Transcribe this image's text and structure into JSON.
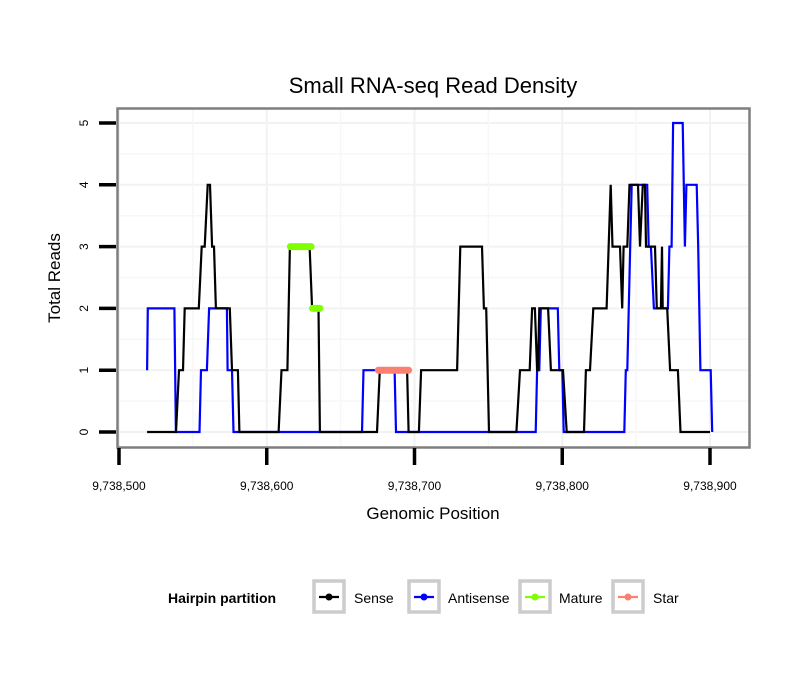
{
  "chart_data": {
    "type": "line",
    "title": "Small RNA-seq Read Density",
    "xlabel": "Genomic Position",
    "ylabel": "Total Reads",
    "xlim": [
      9738480,
      9738928
    ],
    "ylim": [
      -0.25,
      5.25
    ],
    "x_ticks": [
      9738500,
      9738600,
      9738700,
      9738800,
      9738900
    ],
    "x_tick_labels": [
      "9,738,500",
      "9,738,600",
      "9,738,700",
      "9,738,800",
      "9,738,900"
    ],
    "y_ticks": [
      0,
      1,
      2,
      3,
      4,
      5
    ],
    "y_tick_labels": [
      "0",
      "1",
      "2",
      "3",
      "4",
      "5"
    ],
    "grid": true,
    "legend": {
      "title": "Hairpin partition",
      "position": "bottom",
      "entries": [
        {
          "name": "Sense",
          "color": "#000000"
        },
        {
          "name": "Antisense",
          "color": "#0000ff"
        },
        {
          "name": "Mature",
          "color": "#7fff00"
        },
        {
          "name": "Star",
          "color": "#fa8072"
        }
      ]
    },
    "x_offset": 9738500,
    "series": [
      {
        "name": "Sense",
        "color": "#000000",
        "points": [
          [
            19,
            0
          ],
          [
            38.6,
            0
          ],
          [
            40.6,
            1
          ],
          [
            43.3,
            1
          ],
          [
            44.5,
            2
          ],
          [
            54,
            2
          ],
          [
            56,
            3
          ],
          [
            58,
            3
          ],
          [
            60,
            4
          ],
          [
            61.6,
            4
          ],
          [
            63,
            3
          ],
          [
            64.3,
            3
          ],
          [
            65.6,
            2
          ],
          [
            75,
            2
          ],
          [
            76.5,
            1
          ],
          [
            80.5,
            1
          ],
          [
            81.5,
            0
          ],
          [
            108,
            0
          ],
          [
            110,
            1
          ],
          [
            114,
            1
          ],
          [
            115.7,
            3
          ],
          [
            129,
            3
          ],
          [
            130.7,
            2
          ],
          [
            135,
            2
          ],
          [
            136,
            0
          ],
          [
            174.6,
            0
          ],
          [
            176.5,
            1
          ],
          [
            195,
            1
          ],
          [
            196,
            0
          ],
          [
            203,
            0
          ],
          [
            204.5,
            1
          ],
          [
            228.8,
            1
          ],
          [
            231,
            3
          ],
          [
            245.7,
            3
          ],
          [
            247,
            2
          ],
          [
            248.5,
            2
          ],
          [
            250.4,
            0
          ],
          [
            269,
            0
          ],
          [
            271.4,
            1
          ],
          [
            278,
            1
          ],
          [
            279.6,
            2
          ],
          [
            281.5,
            2
          ],
          [
            283,
            1
          ],
          [
            283.5,
            1
          ],
          [
            284.5,
            2
          ],
          [
            290.4,
            2
          ],
          [
            292.3,
            1
          ],
          [
            300.5,
            1
          ],
          [
            303,
            0
          ],
          [
            314.7,
            0
          ],
          [
            316,
            1
          ],
          [
            318.8,
            1
          ],
          [
            321,
            2
          ],
          [
            330,
            2
          ],
          [
            332.8,
            4
          ],
          [
            334,
            3
          ],
          [
            339.1,
            3
          ],
          [
            340.6,
            2
          ],
          [
            341.5,
            3
          ],
          [
            344,
            3
          ],
          [
            345.5,
            4
          ],
          [
            351.3,
            4
          ],
          [
            352.6,
            3
          ],
          [
            354.5,
            4
          ],
          [
            356,
            4
          ],
          [
            356.7,
            3
          ],
          [
            362.8,
            3
          ],
          [
            364,
            2
          ],
          [
            366.8,
            2
          ],
          [
            367.5,
            3
          ],
          [
            368,
            2
          ],
          [
            371,
            2
          ],
          [
            373,
            1
          ],
          [
            378.3,
            1
          ],
          [
            380,
            0
          ],
          [
            400,
            0
          ]
        ]
      },
      {
        "name": "Antisense",
        "color": "#0000ff",
        "points": [
          [
            19,
            1
          ],
          [
            19.5,
            2
          ],
          [
            37.5,
            2
          ],
          [
            38.5,
            0
          ],
          [
            54.5,
            0
          ],
          [
            55.5,
            1
          ],
          [
            59.5,
            1
          ],
          [
            61,
            2
          ],
          [
            73,
            2
          ],
          [
            73.5,
            1
          ],
          [
            76.5,
            1
          ],
          [
            77.5,
            0
          ],
          [
            164.5,
            0
          ],
          [
            165.5,
            1
          ],
          [
            186.5,
            1
          ],
          [
            187.5,
            0
          ],
          [
            282,
            0
          ],
          [
            283,
            1
          ],
          [
            284.5,
            1
          ],
          [
            285.5,
            2
          ],
          [
            297,
            2
          ],
          [
            298,
            1
          ],
          [
            300,
            1
          ],
          [
            301,
            0
          ],
          [
            342,
            0
          ],
          [
            343,
            1
          ],
          [
            344,
            1
          ],
          [
            346,
            3
          ],
          [
            347,
            4
          ],
          [
            357.5,
            4
          ],
          [
            358.5,
            3
          ],
          [
            360,
            3
          ],
          [
            362,
            2
          ],
          [
            371.5,
            2
          ],
          [
            372.5,
            3
          ],
          [
            374,
            3
          ],
          [
            375,
            5
          ],
          [
            381.5,
            5
          ],
          [
            383,
            3
          ],
          [
            384,
            4
          ],
          [
            391,
            4
          ],
          [
            392,
            3
          ],
          [
            393.5,
            1
          ],
          [
            400.5,
            1
          ],
          [
            401.5,
            0
          ]
        ]
      },
      {
        "name": "Mature",
        "color": "#7fff00",
        "segments": [
          {
            "x_start": 116,
            "x_end": 130,
            "reads": 3
          },
          {
            "x_start": 131,
            "x_end": 136,
            "reads": 2
          }
        ]
      },
      {
        "name": "Star",
        "color": "#fa8072",
        "segments": [
          {
            "x_start": 175.5,
            "x_end": 196,
            "reads": 1
          }
        ]
      }
    ]
  }
}
